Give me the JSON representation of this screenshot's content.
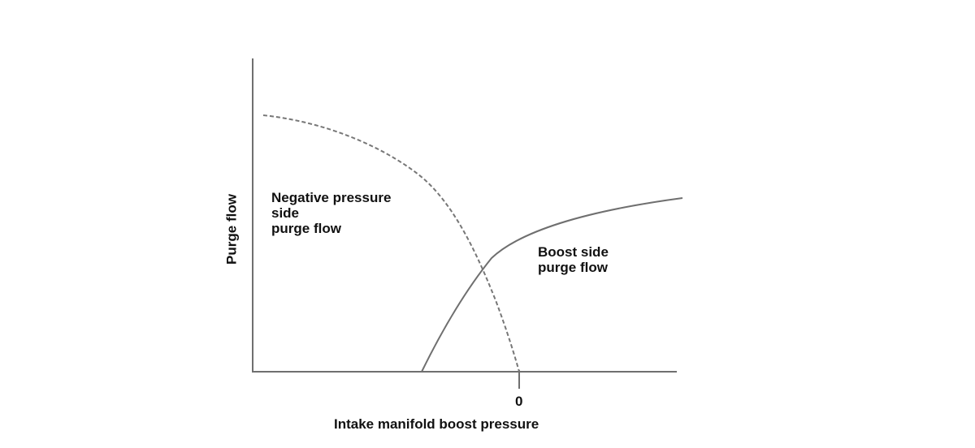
{
  "diagram": {
    "y_axis_label": "Purge flow",
    "x_axis_label": "Intake manifold boost pressure",
    "x_tick_label": "0",
    "curves": [
      {
        "label": "Negative pressure\nside\npurge flow",
        "style": "dashed",
        "color": "#777777"
      },
      {
        "label": "Boost side\npurge flow",
        "style": "solid",
        "color": "#6f6f6f"
      }
    ],
    "axis_color": "#6f6f6f"
  }
}
